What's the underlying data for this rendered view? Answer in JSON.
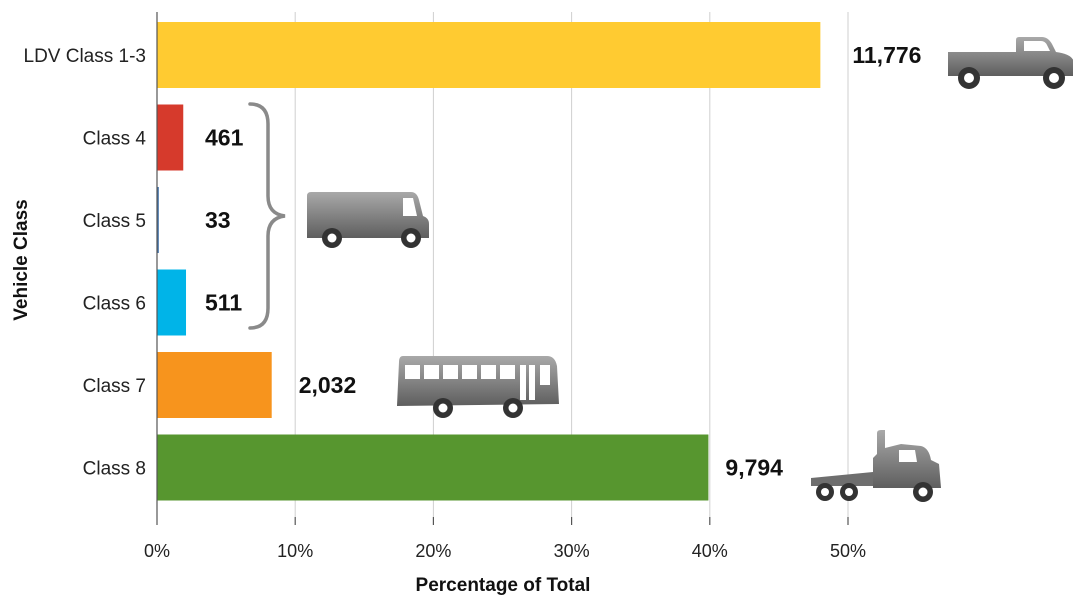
{
  "chart_data": {
    "type": "bar",
    "orientation": "horizontal",
    "categories": [
      "LDV Class 1-3",
      "Class 4",
      "Class 5",
      "Class 6",
      "Class 7",
      "Class 8"
    ],
    "values": [
      48.0,
      1.9,
      0.13,
      2.1,
      8.3,
      39.9
    ],
    "data_labels": [
      "11,776",
      "461",
      "33",
      "511",
      "2,032",
      "9,794"
    ],
    "colors": [
      "#FFCB31",
      "#D63A2C",
      "#3D6FA8",
      "#00B4E8",
      "#F7941D",
      "#57962F"
    ],
    "xlabel": "Percentage of Total",
    "ylabel": "Vehicle Class",
    "xlim": [
      0,
      50
    ],
    "xticks": [
      0,
      10,
      20,
      30,
      40,
      50
    ],
    "xtick_labels": [
      "0%",
      "10%",
      "20%",
      "30%",
      "40%",
      "50%"
    ],
    "grid": "vertical",
    "icons": [
      "pickup-truck-icon",
      "delivery-van-icon",
      "bus-icon",
      "semi-truck-icon"
    ]
  }
}
